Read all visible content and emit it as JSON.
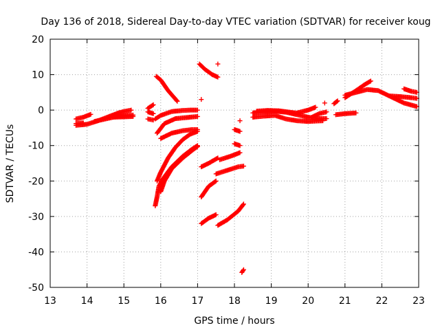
{
  "chart_data": {
    "type": "scatter",
    "title": "Day 136 of 2018, Sidereal Day-to-day VTEC variation (SDTVAR) for receiver koug",
    "xlabel": "GPS time / hours",
    "ylabel": "SDTVAR / TECUs",
    "xlim": [
      13,
      23
    ],
    "ylim": [
      -50,
      20
    ],
    "xticks": [
      13,
      14,
      15,
      16,
      17,
      18,
      19,
      20,
      21,
      22,
      23
    ],
    "yticks": [
      -50,
      -40,
      -30,
      -20,
      -10,
      0,
      10,
      20
    ],
    "grid": true,
    "marker": "+",
    "color": "#ff0000",
    "tracks": [
      {
        "x": [
          13.7,
          13.9,
          14.1
        ],
        "y": [
          -2.5,
          -2.0,
          -1.2
        ]
      },
      {
        "x": [
          13.7,
          13.9
        ],
        "y": [
          -3.8,
          -3.6
        ]
      },
      {
        "x": [
          13.7,
          14.0,
          14.3,
          14.6,
          14.85,
          15.0,
          15.2
        ],
        "y": [
          -4.3,
          -4.0,
          -3.0,
          -1.8,
          -0.8,
          -0.4,
          0.0
        ]
      },
      {
        "x": [
          14.2,
          14.5,
          14.8,
          15.1,
          15.25
        ],
        "y": [
          -3.2,
          -2.5,
          -1.8,
          -1.5,
          -1.4
        ]
      },
      {
        "x": [
          14.7,
          15.0,
          15.25
        ],
        "y": [
          -2.0,
          -1.9,
          -1.8
        ]
      },
      {
        "x": [
          15.65,
          15.8
        ],
        "y": [
          0.5,
          1.5
        ]
      },
      {
        "x": [
          15.65,
          15.8
        ],
        "y": [
          -2.5,
          -2.8
        ]
      },
      {
        "x": [
          15.65,
          15.8
        ],
        "y": [
          -0.5,
          -1.0
        ]
      },
      {
        "x": [
          15.88,
          16.0,
          16.2,
          16.45
        ],
        "y": [
          9.5,
          8.5,
          5.5,
          2.5
        ]
      },
      {
        "x": [
          15.85,
          16.0,
          16.3,
          16.6,
          16.8,
          17.0
        ],
        "y": [
          -2.5,
          -1.5,
          -0.4,
          -0.1,
          0.0,
          0.0
        ]
      },
      {
        "x": [
          15.9,
          16.1,
          16.4,
          16.7,
          17.0
        ],
        "y": [
          -6.5,
          -3.8,
          -2.4,
          -2.1,
          -1.8
        ]
      },
      {
        "x": [
          16.0,
          16.3,
          16.6,
          16.85,
          17.0
        ],
        "y": [
          -8.0,
          -6.5,
          -5.8,
          -5.5,
          -5.5
        ]
      },
      {
        "x": [
          15.9,
          16.0,
          16.2,
          16.4,
          16.6,
          16.8,
          17.0
        ],
        "y": [
          -20.0,
          -17.5,
          -13.5,
          -10.5,
          -8.3,
          -6.8,
          -6.0
        ]
      },
      {
        "x": [
          15.85,
          15.9,
          15.95,
          16.05,
          16.3,
          16.6,
          16.85,
          17.0
        ],
        "y": [
          -27.0,
          -24.5,
          -21.5,
          -19.5,
          -16.0,
          -13.0,
          -11.0,
          -10.0
        ]
      },
      {
        "x": [
          16.0,
          16.1,
          16.3,
          16.6,
          16.9,
          17.0
        ],
        "y": [
          -23.0,
          -20.0,
          -16.5,
          -13.5,
          -11.0,
          -10.3
        ]
      },
      {
        "x": [
          17.05,
          17.2,
          17.4,
          17.55
        ],
        "y": [
          13.0,
          11.5,
          10.0,
          9.3
        ]
      },
      {
        "x": [
          17.55
        ],
        "y": [
          13.0
        ]
      },
      {
        "x": [
          17.1
        ],
        "y": [
          3.0
        ]
      },
      {
        "x": [
          17.1,
          17.3,
          17.55
        ],
        "y": [
          -16.0,
          -15.0,
          -13.5
        ]
      },
      {
        "x": [
          17.1,
          17.3,
          17.5
        ],
        "y": [
          -24.5,
          -21.5,
          -20.0
        ]
      },
      {
        "x": [
          17.1,
          17.3,
          17.5
        ],
        "y": [
          -32.0,
          -30.5,
          -29.5
        ]
      },
      {
        "x": [
          17.5,
          17.8,
          18.1,
          18.25
        ],
        "y": [
          -18.0,
          -17.0,
          -16.0,
          -15.8
        ]
      },
      {
        "x": [
          17.55,
          17.8,
          18.1,
          18.25
        ],
        "y": [
          -32.5,
          -31.0,
          -28.5,
          -26.5
        ]
      },
      {
        "x": [
          17.6,
          17.9,
          18.15
        ],
        "y": [
          -14.0,
          -13.0,
          -12.0
        ]
      },
      {
        "x": [
          18.0,
          18.15
        ],
        "y": [
          -5.5,
          -6.0
        ]
      },
      {
        "x": [
          18.0,
          18.15
        ],
        "y": [
          -9.5,
          -10.0
        ]
      },
      {
        "x": [
          18.15
        ],
        "y": [
          -3.0
        ]
      },
      {
        "x": [
          18.2,
          18.25
        ],
        "y": [
          -45.8,
          -45.0
        ]
      },
      {
        "x": [
          18.5,
          18.8,
          19.1,
          19.4,
          19.7,
          20.0,
          20.3,
          20.5
        ],
        "y": [
          -0.8,
          -0.5,
          -0.3,
          -0.6,
          -1.3,
          -2.0,
          -2.4,
          -2.4
        ]
      },
      {
        "x": [
          18.5,
          18.8,
          19.1,
          19.4,
          19.7,
          20.0,
          20.4
        ],
        "y": [
          -2.0,
          -1.7,
          -1.5,
          -2.5,
          -3.0,
          -3.2,
          -3.0
        ]
      },
      {
        "x": [
          18.6,
          18.9,
          19.2,
          19.5,
          19.8
        ],
        "y": [
          -0.3,
          -0.1,
          -0.2,
          -0.6,
          -1.0
        ]
      },
      {
        "x": [
          19.7,
          20.0,
          20.2
        ],
        "y": [
          -0.8,
          0.0,
          0.8
        ]
      },
      {
        "x": [
          20.1,
          20.3,
          20.5
        ],
        "y": [
          -2.0,
          -1.0,
          -0.5
        ]
      },
      {
        "x": [
          20.45
        ],
        "y": [
          2.0
        ]
      },
      {
        "x": [
          20.7,
          20.8
        ],
        "y": [
          1.8,
          2.6
        ]
      },
      {
        "x": [
          20.75,
          21.0,
          21.3
        ],
        "y": [
          -1.3,
          -1.0,
          -0.8
        ]
      },
      {
        "x": [
          21.0,
          21.3,
          21.55,
          21.7
        ],
        "y": [
          3.5,
          5.5,
          7.3,
          8.2
        ]
      },
      {
        "x": [
          21.0,
          21.3,
          21.6,
          21.9,
          22.1,
          22.3,
          22.6,
          22.95
        ],
        "y": [
          4.2,
          5.0,
          5.8,
          5.5,
          4.5,
          3.5,
          2.0,
          1.0
        ]
      },
      {
        "x": [
          22.2,
          22.5,
          22.8,
          22.95
        ],
        "y": [
          4.0,
          3.8,
          3.5,
          3.3
        ]
      },
      {
        "x": [
          22.6,
          22.8,
          22.95
        ],
        "y": [
          6.0,
          5.3,
          5.0
        ]
      }
    ]
  }
}
